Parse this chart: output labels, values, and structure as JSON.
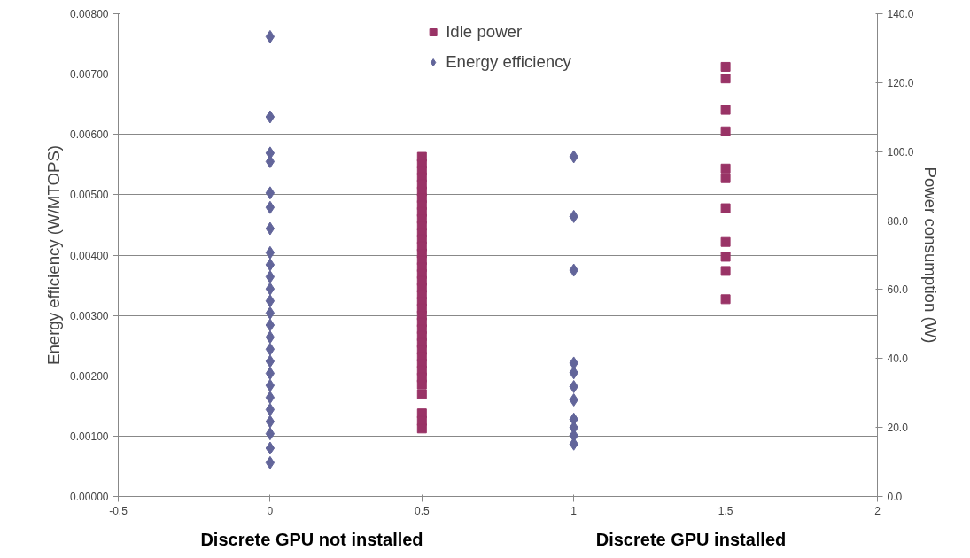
{
  "chart_data": {
    "type": "scatter",
    "xlabel": null,
    "ylabel": "Energy efficiency (W/MTOPS)",
    "y2label": "Power consumption (W)",
    "xlim": [
      -0.5,
      2
    ],
    "xticks": [
      -0.5,
      0,
      0.5,
      1,
      1.5,
      2
    ],
    "ylim": [
      0,
      0.008
    ],
    "yticks": [
      {
        "value": 0,
        "label": "0.00000"
      },
      {
        "value": 0.001,
        "label": "0.00100"
      },
      {
        "value": 0.002,
        "label": "0.00200"
      },
      {
        "value": 0.003,
        "label": "0.00300"
      },
      {
        "value": 0.004,
        "label": "0.00400"
      },
      {
        "value": 0.005,
        "label": "0.00500"
      },
      {
        "value": 0.006,
        "label": "0.00600"
      },
      {
        "value": 0.007,
        "label": "0.00700"
      },
      {
        "value": 0.008,
        "label": "0.00800"
      }
    ],
    "y2lim": [
      0,
      140
    ],
    "y2ticks": [
      {
        "value": 0,
        "label": "0.0"
      },
      {
        "value": 20,
        "label": "20.0"
      },
      {
        "value": 40,
        "label": "40.0"
      },
      {
        "value": 60,
        "label": "60.0"
      },
      {
        "value": 80,
        "label": "80.0"
      },
      {
        "value": 100,
        "label": "100.0"
      },
      {
        "value": 120,
        "label": "120.0"
      },
      {
        "value": 140,
        "label": "140.0"
      }
    ],
    "grid": "y",
    "legend": "top",
    "annotations": [
      "Discrete GPU not installed",
      "Discrete GPU installed"
    ],
    "series": [
      {
        "name": "Idle power",
        "color": "#993366",
        "marker": "square",
        "axis": "y2",
        "x": [
          0.5,
          0.5,
          0.5,
          0.5,
          0.5,
          0.5,
          0.5,
          0.5,
          0.5,
          0.5,
          0.5,
          0.5,
          0.5,
          0.5,
          0.5,
          0.5,
          0.5,
          0.5,
          0.5,
          0.5,
          0.5,
          0.5,
          0.5,
          0.5,
          0.5,
          0.5,
          0.5,
          0.5,
          0.5,
          0.5,
          0.5,
          0.5,
          0.5,
          0.5,
          0.5,
          0.5,
          0.5,
          0.5,
          1.5,
          1.5,
          1.5,
          1.5,
          1.5,
          1.5,
          1.5,
          1.5,
          1.5,
          1.5,
          1.5
        ],
        "values": [
          98.5,
          96.5,
          94.5,
          92.5,
          90.5,
          88.5,
          86.5,
          84.5,
          82.5,
          80.5,
          78.5,
          76.5,
          74.5,
          72.5,
          70.5,
          68.5,
          66.5,
          64.5,
          62.5,
          60.5,
          58.5,
          56.5,
          54.5,
          52.5,
          50.5,
          48.5,
          46.5,
          44.5,
          42.5,
          40.5,
          38.5,
          36.5,
          34.5,
          32.5,
          29.7,
          24.1,
          21.9,
          19.7,
          124.6,
          121.2,
          112.1,
          105.9,
          95.1,
          92.3,
          83.6,
          73.8,
          69.5,
          65.4,
          57.2
        ]
      },
      {
        "name": "Energy efficiency",
        "color": "#62659a",
        "marker": "diamond",
        "x": [
          0,
          0,
          0,
          0,
          0,
          0,
          0,
          0,
          0,
          0,
          0,
          0,
          0,
          0,
          0,
          0,
          0,
          0,
          0,
          0,
          0,
          0,
          0,
          0,
          0,
          1,
          1,
          1,
          1,
          1,
          1,
          1,
          1,
          1,
          1,
          1
        ],
        "values": [
          0.00762,
          0.00629,
          0.00569,
          0.00555,
          0.00503,
          0.00479,
          0.00444,
          0.00404,
          0.00384,
          0.00364,
          0.00344,
          0.00324,
          0.00304,
          0.00284,
          0.00264,
          0.00244,
          0.00224,
          0.00204,
          0.00184,
          0.00164,
          0.00144,
          0.00124,
          0.00104,
          0.0008,
          0.00056,
          0.00563,
          0.00464,
          0.00375,
          0.00221,
          0.00205,
          0.00182,
          0.0016,
          0.00128,
          0.00114,
          0.00101,
          0.00087
        ]
      }
    ]
  }
}
